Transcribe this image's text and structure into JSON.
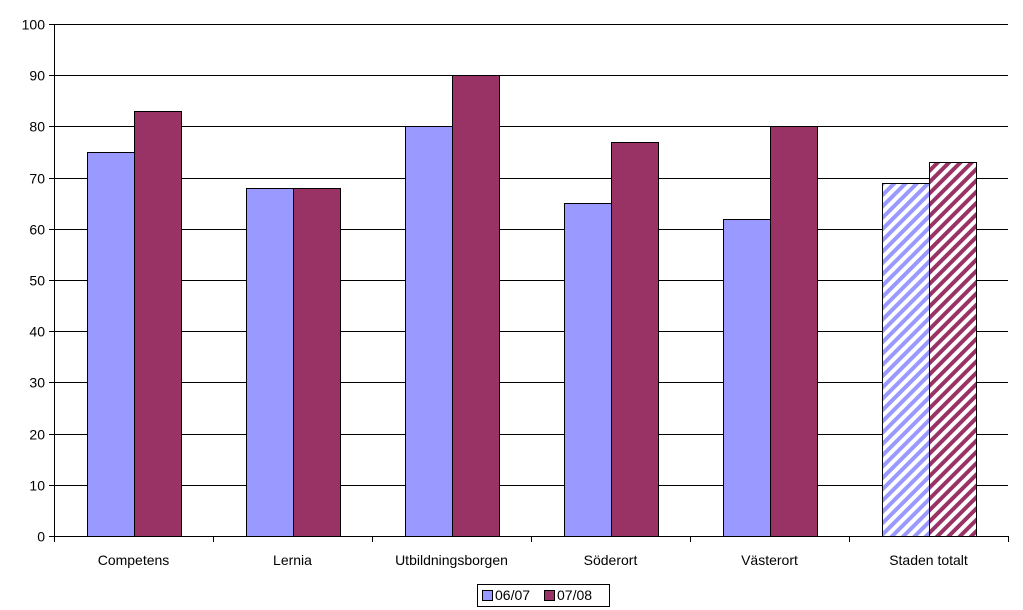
{
  "chart_data": {
    "type": "bar",
    "categories": [
      "Competens",
      "Lernia",
      "Utbildningsborgen",
      "Söderort",
      "Västerort",
      "Staden totalt"
    ],
    "series": [
      {
        "name": "06/07",
        "values": [
          75,
          68,
          80,
          65,
          62,
          69
        ],
        "color": "#9999ff"
      },
      {
        "name": "07/08",
        "values": [
          83,
          68,
          90,
          77,
          80,
          73
        ],
        "color": "#993366"
      }
    ],
    "hatched_categories": [
      "Staden totalt"
    ],
    "ylim": [
      0,
      100
    ],
    "yticks": [
      0,
      10,
      20,
      30,
      40,
      50,
      60,
      70,
      80,
      90,
      100
    ],
    "grid": true,
    "legend_position": "bottom-center",
    "title": "",
    "xlabel": "",
    "ylabel": ""
  }
}
